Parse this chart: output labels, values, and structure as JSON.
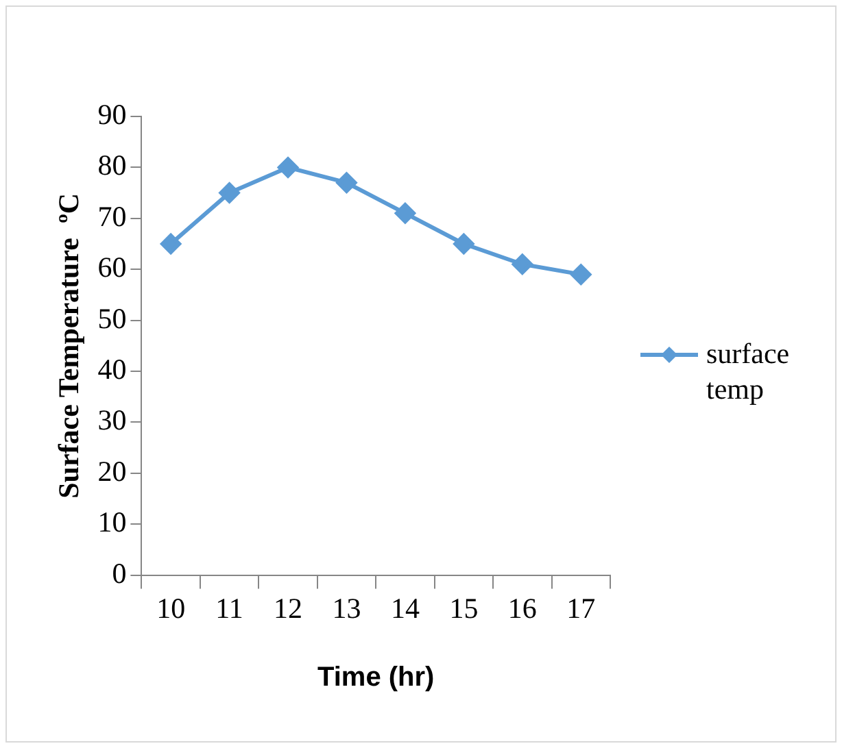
{
  "chart_data": {
    "type": "line",
    "xlabel": "Time (hr)",
    "ylabel": "Surface Temperature  ºC",
    "categories": [
      "10",
      "11",
      "12",
      "13",
      "14",
      "15",
      "16",
      "17"
    ],
    "series": [
      {
        "name": "surface temp",
        "color": "#5b9bd5",
        "values": [
          65,
          75,
          80,
          77,
          71,
          65,
          61,
          59
        ]
      }
    ],
    "ylim": [
      0,
      90
    ],
    "yticks": [
      0,
      10,
      20,
      30,
      40,
      50,
      60,
      70,
      80,
      90
    ],
    "grid": false,
    "legend": "right",
    "marker": "diamond",
    "line_style": "solid"
  }
}
